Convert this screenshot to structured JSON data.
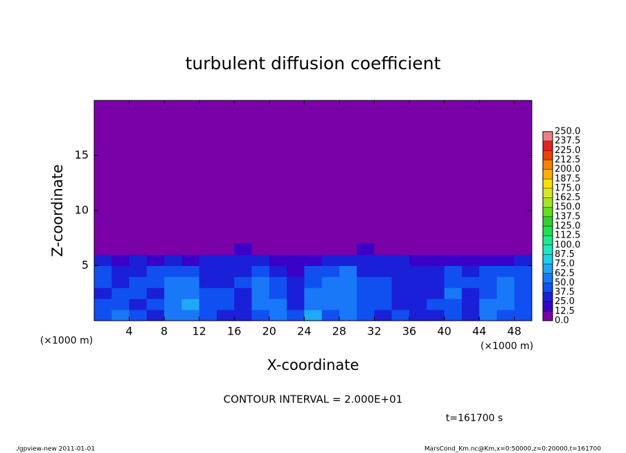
{
  "chart_data": {
    "type": "contour",
    "title": "turbulent diffusion coefficient",
    "xlabel": "X-coordinate",
    "ylabel": "Z-coordinate",
    "x_unit": "(×1000 m)",
    "y_unit": "(×1000 m)",
    "annotation": "CONTOUR INTERVAL = 2.000E+01",
    "time_label": "t=161700 s",
    "footer_left": "./gpview-new   2011-01-01",
    "footer_right": "MarsCond_Km.nc@Km,x=0:50000,z=0:20000,t=161700",
    "xlim": [
      0,
      50
    ],
    "ylim": [
      0,
      20
    ],
    "xticks": [
      4,
      8,
      12,
      16,
      20,
      24,
      28,
      32,
      36,
      40,
      44,
      48
    ],
    "yticks": [
      5,
      10,
      15
    ],
    "x": [
      1,
      3,
      5,
      7,
      9,
      11,
      13,
      15,
      17,
      19,
      21,
      23,
      25,
      27,
      29,
      31,
      33,
      35,
      37,
      39,
      41,
      43,
      45,
      47,
      49
    ],
    "z": [
      0.5,
      1.5,
      2.5,
      3.5,
      4.5,
      5.5,
      6.5
    ],
    "values": [
      [
        45,
        50,
        40,
        35,
        55,
        60,
        40,
        35,
        30,
        45,
        50,
        40,
        70,
        45,
        55,
        40,
        35,
        40,
        30,
        35,
        40,
        35,
        50,
        45,
        40
      ],
      [
        40,
        45,
        35,
        40,
        60,
        65,
        45,
        40,
        35,
        50,
        55,
        35,
        60,
        50,
        60,
        45,
        40,
        35,
        35,
        40,
        45,
        30,
        55,
        50,
        45
      ],
      [
        35,
        40,
        45,
        35,
        55,
        60,
        40,
        40,
        35,
        55,
        45,
        30,
        50,
        55,
        55,
        40,
        45,
        35,
        30,
        35,
        50,
        35,
        45,
        55,
        40
      ],
      [
        40,
        35,
        40,
        45,
        50,
        55,
        35,
        30,
        40,
        50,
        40,
        25,
        45,
        50,
        60,
        40,
        40,
        30,
        30,
        35,
        45,
        40,
        45,
        50,
        45
      ],
      [
        40,
        30,
        35,
        40,
        40,
        45,
        30,
        35,
        35,
        40,
        35,
        20,
        40,
        40,
        55,
        35,
        35,
        30,
        30,
        30,
        40,
        35,
        40,
        45,
        40
      ],
      [
        30,
        20,
        25,
        20,
        25,
        20,
        25,
        30,
        30,
        25,
        20,
        15,
        20,
        25,
        35,
        30,
        25,
        25,
        20,
        15,
        20,
        20,
        15,
        20,
        30
      ],
      [
        0,
        0,
        0,
        0,
        0,
        0,
        5,
        10,
        15,
        10,
        5,
        0,
        5,
        5,
        10,
        15,
        10,
        5,
        0,
        0,
        0,
        0,
        0,
        0,
        0
      ]
    ],
    "colorbar": {
      "levels": [
        {
          "value": 0,
          "label": "0.0"
        },
        {
          "value": 12.5,
          "label": "12.5"
        },
        {
          "value": 25,
          "label": "25.0"
        },
        {
          "value": 37.5,
          "label": "37.5"
        },
        {
          "value": 50,
          "label": "50.0"
        },
        {
          "value": 62.5,
          "label": "62.5"
        },
        {
          "value": 75,
          "label": "75.0"
        },
        {
          "value": 87.5,
          "label": "87.5"
        },
        {
          "value": 100,
          "label": "100.0"
        },
        {
          "value": 112.5,
          "label": "112.5"
        },
        {
          "value": 125,
          "label": "125.0"
        },
        {
          "value": 137.5,
          "label": "137.5"
        },
        {
          "value": 150,
          "label": "150.0"
        },
        {
          "value": 162.5,
          "label": "162.5"
        },
        {
          "value": 175,
          "label": "175.0"
        },
        {
          "value": 187.5,
          "label": "187.5"
        },
        {
          "value": 200,
          "label": "200.0"
        },
        {
          "value": 212.5,
          "label": "212.5"
        },
        {
          "value": 225,
          "label": "225.0"
        },
        {
          "value": 237.5,
          "label": "237.5"
        },
        {
          "value": 250,
          "label": "250.0"
        }
      ],
      "colors": [
        "#7a00a8",
        "#3a00c8",
        "#1a20d8",
        "#1050f0",
        "#1878f8",
        "#20a8f8",
        "#20d0e8",
        "#20e8c0",
        "#20e890",
        "#20e050",
        "#30d030",
        "#60e020",
        "#a0e820",
        "#d8e820",
        "#f8e000",
        "#f8b000",
        "#f88000",
        "#f04000",
        "#e82020",
        "#f08080"
      ]
    }
  }
}
